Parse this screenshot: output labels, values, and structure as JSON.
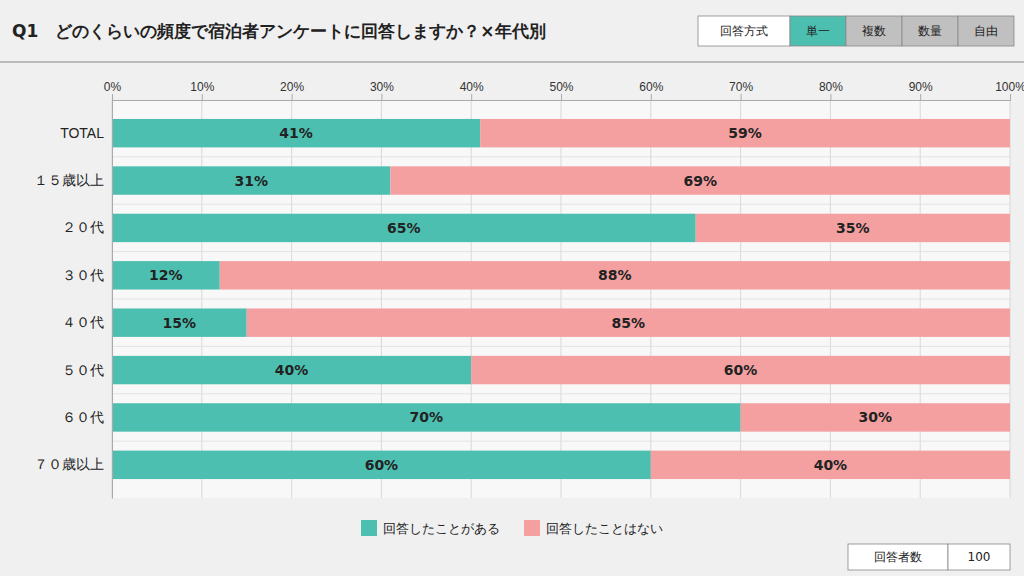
{
  "chart_data": {
    "type": "bar",
    "title": "Q1　どのくらいの頻度で宿泊者アンケートに回答しますか？×年代別",
    "orientation": "horizontal",
    "stacked": true,
    "data_labels": true,
    "grid": true,
    "legend": "bottom",
    "categories": [
      "TOTAL",
      "１５歳以上",
      "２０代",
      "３０代",
      "４０代",
      "５０代",
      "６０代",
      "７０歳以上"
    ],
    "series": [
      {
        "name": "回答したことがある",
        "color": "#4DBFB0",
        "values": [
          41,
          31,
          65,
          12,
          15,
          40,
          70,
          60
        ],
        "value_labels": [
          "41%",
          "31%",
          "65%",
          "12%",
          "15%",
          "40%",
          "70%",
          "60%"
        ]
      },
      {
        "name": "回答したことはない",
        "color": "#F4A0A0",
        "values": [
          59,
          69,
          35,
          88,
          85,
          60,
          30,
          40
        ],
        "value_labels": [
          "59%",
          "69%",
          "35%",
          "88%",
          "85%",
          "60%",
          "30%",
          "40%"
        ]
      }
    ],
    "xlim": [
      0,
      100
    ],
    "xticks": [
      {
        "value": 0,
        "label": "0%"
      },
      {
        "value": 10,
        "label": "10%"
      },
      {
        "value": 20,
        "label": "20%"
      },
      {
        "value": 30,
        "label": "30%"
      },
      {
        "value": 40,
        "label": "40%"
      },
      {
        "value": 50,
        "label": "50%"
      },
      {
        "value": 60,
        "label": "60%"
      },
      {
        "value": 70,
        "label": "70%"
      },
      {
        "value": 80,
        "label": "80%"
      },
      {
        "value": 90,
        "label": "90%"
      },
      {
        "value": 100,
        "label": "100%"
      }
    ],
    "annotations": [
      "回答方式",
      "単一",
      "複数",
      "数量",
      "自由",
      "回答者数",
      "100"
    ]
  }
}
